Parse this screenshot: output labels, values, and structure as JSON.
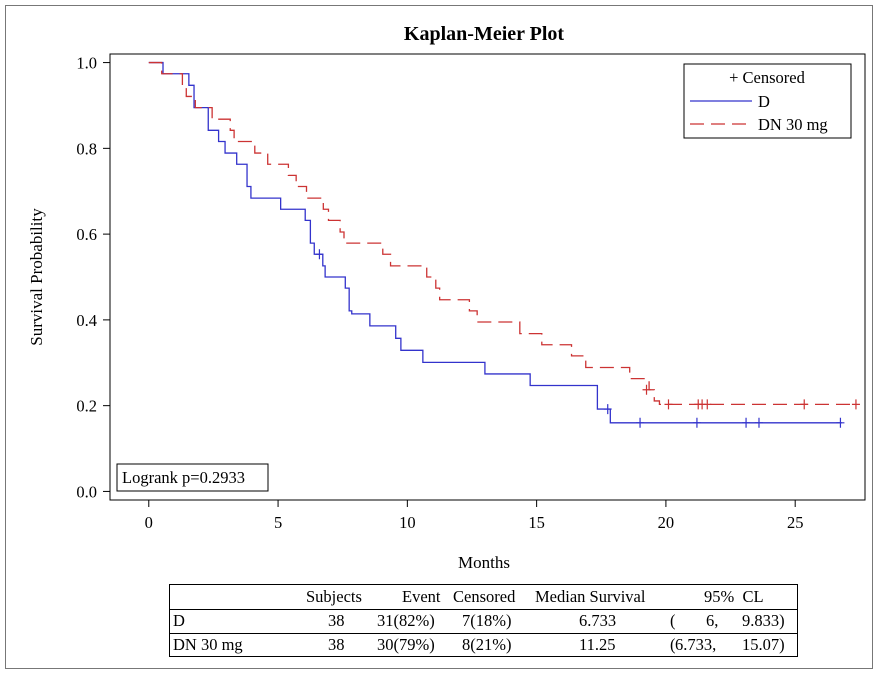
{
  "chart_data": {
    "type": "line",
    "subtype": "kaplan-meier-step",
    "title": "Kaplan-Meier Plot",
    "xlabel": "Months",
    "ylabel": "Survival Probability",
    "xlim": [
      -1.5,
      27.7
    ],
    "ylim": [
      -0.02,
      1.02
    ],
    "xticks": [
      0,
      5,
      10,
      15,
      20,
      25
    ],
    "yticks": [
      0.0,
      0.2,
      0.4,
      0.6,
      0.8,
      1.0
    ],
    "xtick_labels": [
      "0",
      "5",
      "10",
      "15",
      "20",
      "25"
    ],
    "ytick_labels": [
      "0.0",
      "0.2",
      "0.4",
      "0.6",
      "0.8",
      "1.0"
    ],
    "grid": false,
    "legend": {
      "position": "top-right",
      "header": "+ Censored",
      "entries": [
        "D",
        "DN 30 mg"
      ]
    },
    "annotation": "Logrank p=0.2933",
    "series": [
      {
        "name": "D",
        "color": "#3333cc",
        "dash": "solid",
        "steps": [
          [
            0,
            1.0
          ],
          [
            0.55,
            0.974
          ],
          [
            1.55,
            0.947
          ],
          [
            1.75,
            0.895
          ],
          [
            2.3,
            0.842
          ],
          [
            2.7,
            0.816
          ],
          [
            2.95,
            0.789
          ],
          [
            3.4,
            0.763
          ],
          [
            3.8,
            0.711
          ],
          [
            3.95,
            0.684
          ],
          [
            4.1,
            0.684
          ],
          [
            5.1,
            0.658
          ],
          [
            6.05,
            0.632
          ],
          [
            6.25,
            0.579
          ],
          [
            6.4,
            0.553
          ],
          [
            6.73,
            0.526
          ],
          [
            6.82,
            0.5
          ],
          [
            7.6,
            0.474
          ],
          [
            7.75,
            0.421
          ],
          [
            7.85,
            0.414
          ],
          [
            8.55,
            0.386
          ],
          [
            9.55,
            0.357
          ],
          [
            9.75,
            0.329
          ],
          [
            10.6,
            0.301
          ],
          [
            13.0,
            0.274
          ],
          [
            14.75,
            0.247
          ],
          [
            17.35,
            0.192
          ],
          [
            17.5,
            0.192
          ],
          [
            17.85,
            0.16
          ],
          [
            26.8,
            0.16
          ]
        ],
        "censored": [
          [
            6.6,
            0.553
          ],
          [
            17.75,
            0.192
          ],
          [
            19.0,
            0.16
          ],
          [
            21.2,
            0.16
          ],
          [
            23.1,
            0.16
          ],
          [
            23.6,
            0.16
          ],
          [
            26.75,
            0.16
          ]
        ]
      },
      {
        "name": "DN 30 mg",
        "color": "#cc3333",
        "dash": "dashed",
        "steps": [
          [
            0,
            1.0
          ],
          [
            0.5,
            0.974
          ],
          [
            1.3,
            0.947
          ],
          [
            1.45,
            0.921
          ],
          [
            1.8,
            0.895
          ],
          [
            2.45,
            0.868
          ],
          [
            3.15,
            0.842
          ],
          [
            3.3,
            0.816
          ],
          [
            4.1,
            0.789
          ],
          [
            4.6,
            0.763
          ],
          [
            5.4,
            0.737
          ],
          [
            5.7,
            0.711
          ],
          [
            6.1,
            0.684
          ],
          [
            6.75,
            0.658
          ],
          [
            6.95,
            0.632
          ],
          [
            7.4,
            0.605
          ],
          [
            7.55,
            0.579
          ],
          [
            9.05,
            0.553
          ],
          [
            9.35,
            0.526
          ],
          [
            10.75,
            0.5
          ],
          [
            11.1,
            0.474
          ],
          [
            11.25,
            0.447
          ],
          [
            12.4,
            0.421
          ],
          [
            12.7,
            0.395
          ],
          [
            14.35,
            0.368
          ],
          [
            15.2,
            0.342
          ],
          [
            16.35,
            0.316
          ],
          [
            16.9,
            0.289
          ],
          [
            18.6,
            0.263
          ],
          [
            19.35,
            0.237
          ],
          [
            19.55,
            0.211
          ],
          [
            19.75,
            0.203
          ],
          [
            27.35,
            0.203
          ]
        ],
        "censored": [
          [
            19.25,
            0.237
          ],
          [
            20.1,
            0.203
          ],
          [
            21.25,
            0.203
          ],
          [
            21.4,
            0.203
          ],
          [
            21.6,
            0.203
          ],
          [
            25.35,
            0.203
          ],
          [
            27.35,
            0.203
          ]
        ]
      }
    ]
  },
  "summary_table": {
    "header": {
      "subjects": "Subjects",
      "event": "Event",
      "censored": "Censored",
      "median": "Median Survival",
      "ci": "95%  CL"
    },
    "rows": [
      {
        "group": "D",
        "subjects": "38",
        "event": "31(82%)",
        "censored": "7(18%)",
        "median": "6.733",
        "ci_open": "(",
        "ci_low": "6,",
        "ci_high": "9.833)"
      },
      {
        "group": "DN 30 mg",
        "subjects": "38",
        "event": "30(79%)",
        "censored": "8(21%)",
        "median": "11.25",
        "ci_open": "(",
        "ci_low": "6.733,",
        "ci_high": "15.07)"
      }
    ]
  }
}
